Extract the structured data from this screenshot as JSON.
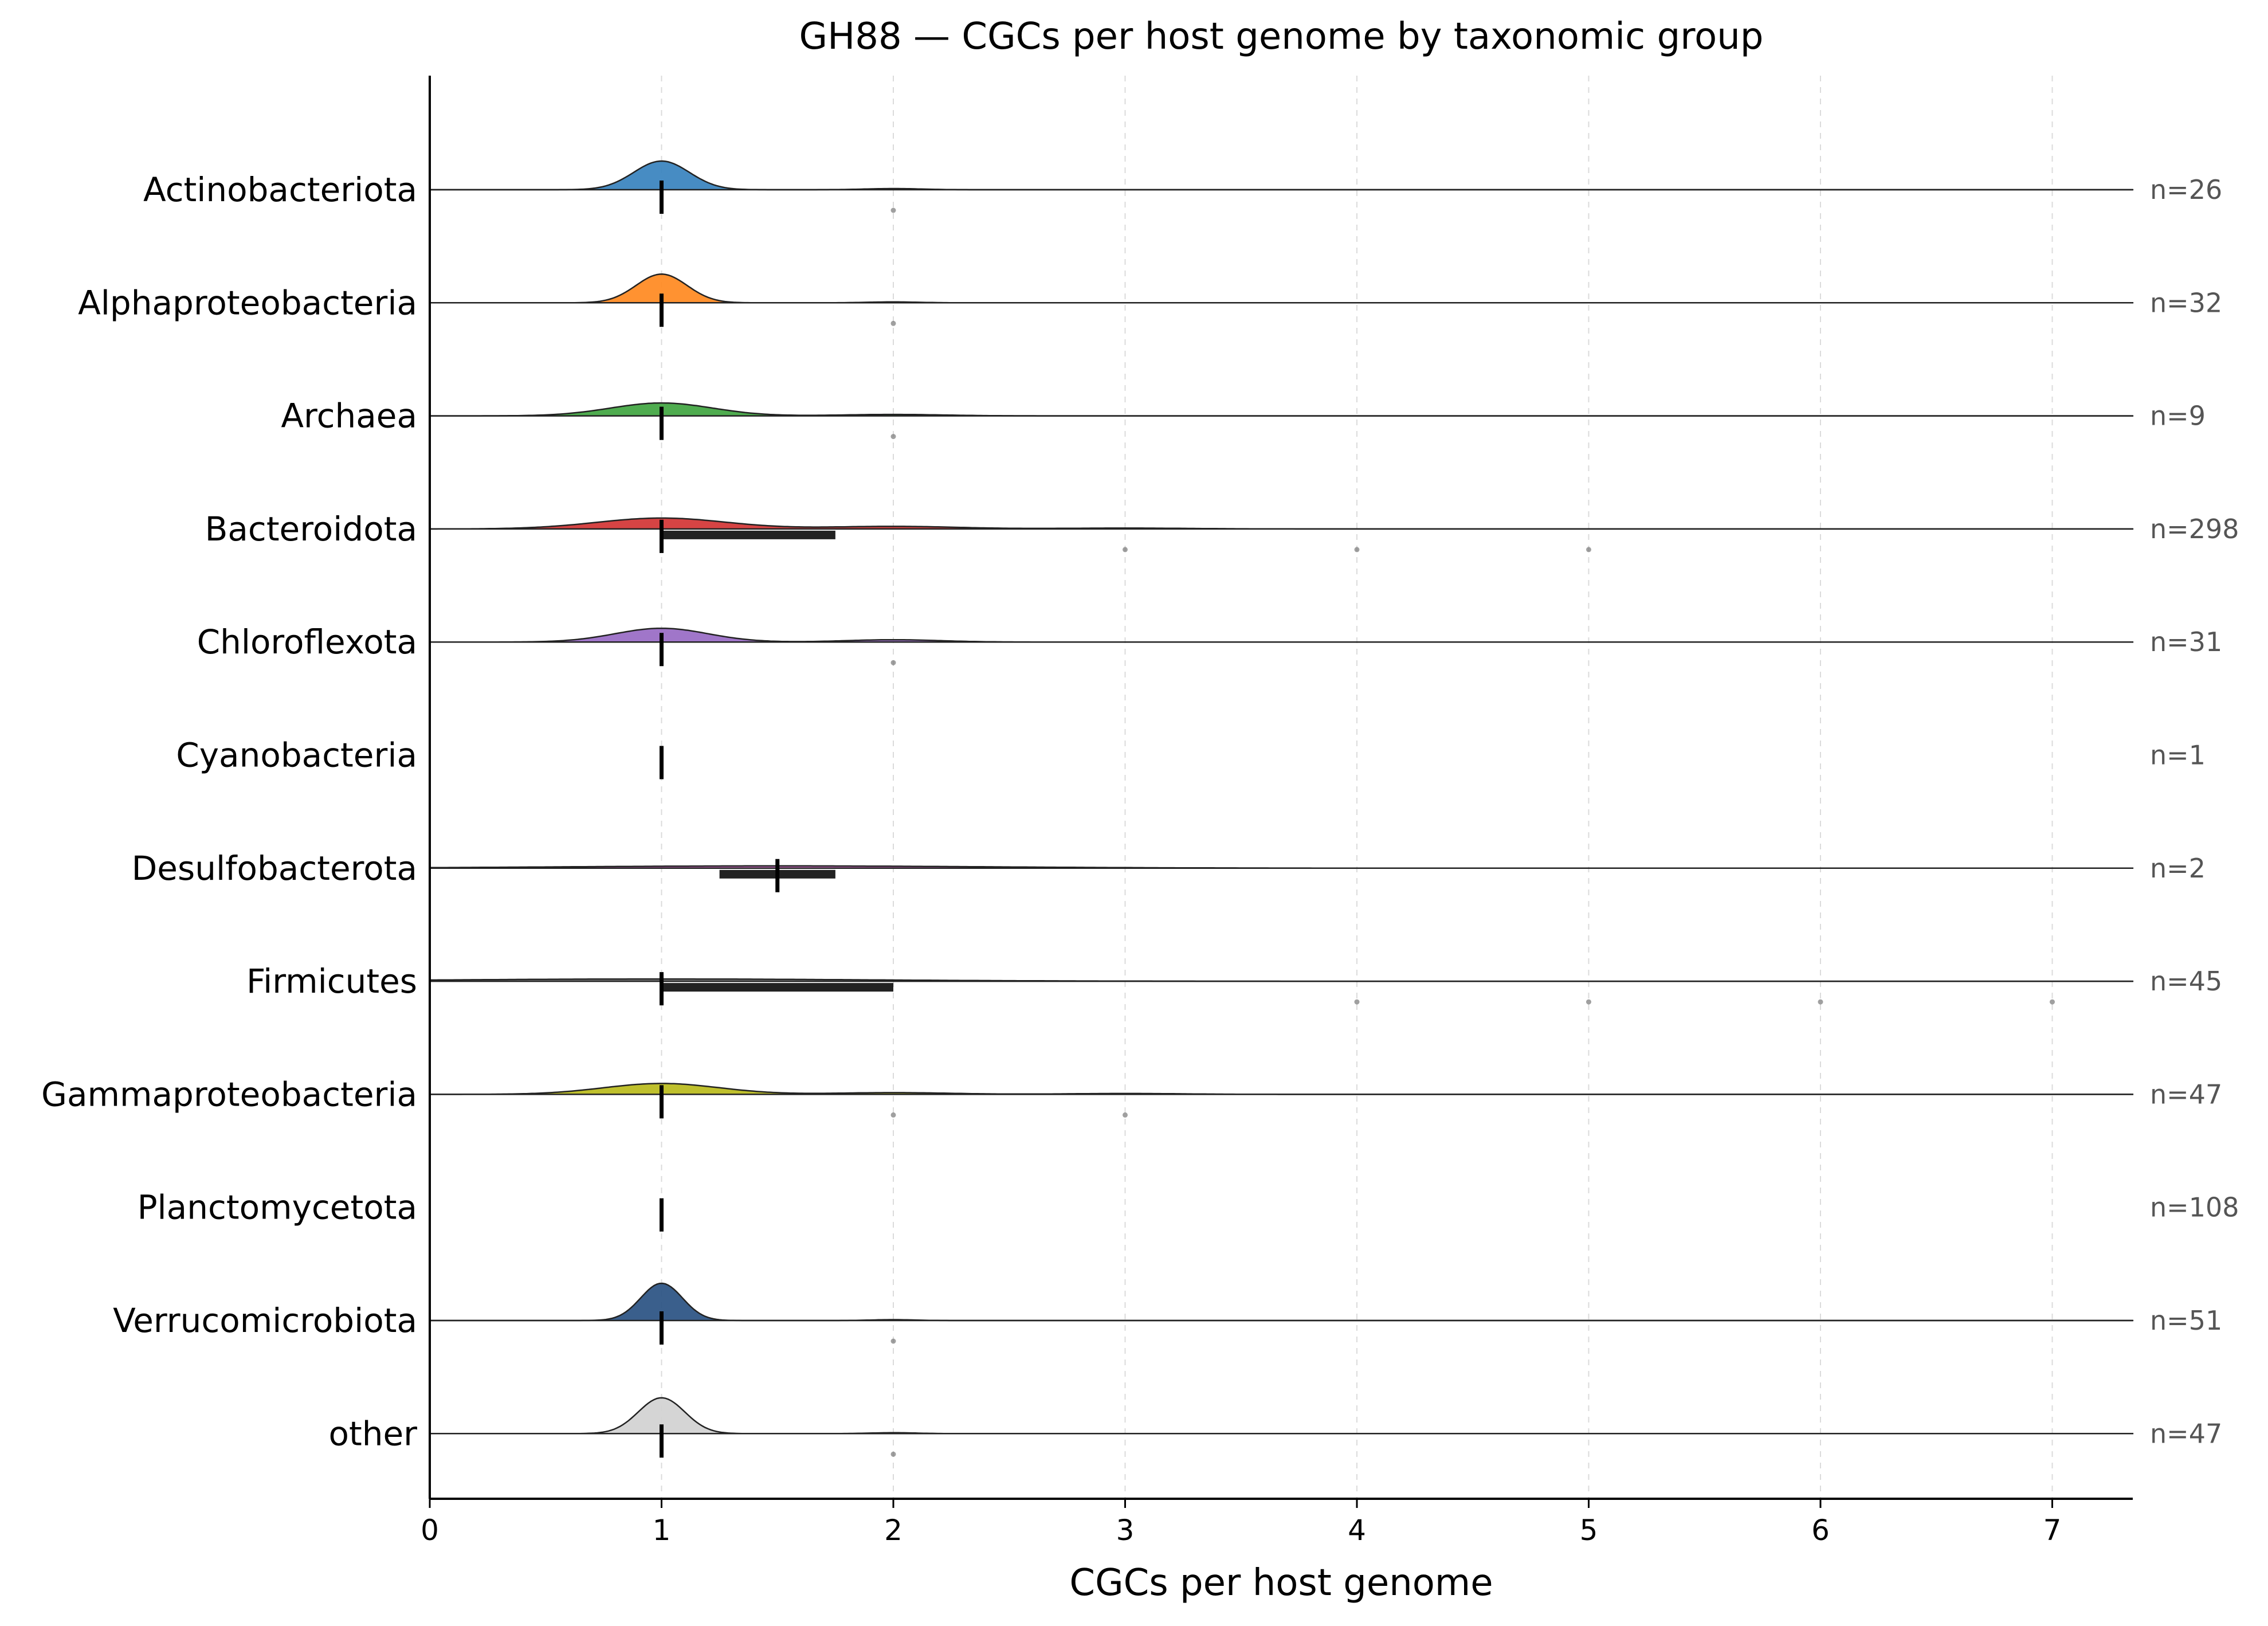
{
  "chart_data": {
    "type": "ridgeline",
    "title": "GH88 — CGCs per host genome by taxonomic group",
    "xlabel": "CGCs per host genome",
    "ylabel": "",
    "xlim": [
      0,
      7.35
    ],
    "xticks": [
      "0",
      "1",
      "2",
      "3",
      "4",
      "5",
      "6",
      "7"
    ],
    "grid": "vertical dashed",
    "series": [
      {
        "name": "Actinobacteriota",
        "color": "#3d86c0",
        "n_label": "n=26",
        "n": 26,
        "median": 1,
        "q1": 1,
        "q3": 1,
        "density": [
          {
            "mu": 1,
            "sigma": 0.12,
            "h": 1.0
          },
          {
            "mu": 2,
            "sigma": 0.12,
            "h": 0.04
          }
        ],
        "outliers": [
          2
        ]
      },
      {
        "name": "Alphaproteobacteria",
        "color": "#ff8c26",
        "n_label": "n=32",
        "n": 32,
        "median": 1,
        "q1": 1,
        "q3": 1,
        "density": [
          {
            "mu": 1,
            "sigma": 0.11,
            "h": 1.0
          },
          {
            "mu": 2,
            "sigma": 0.11,
            "h": 0.03
          }
        ],
        "outliers": [
          2
        ]
      },
      {
        "name": "Archaea",
        "color": "#46a846",
        "n_label": "n=9",
        "n": 9,
        "median": 1,
        "q1": 1,
        "q3": 1,
        "density": [
          {
            "mu": 1,
            "sigma": 0.22,
            "h": 0.45
          },
          {
            "mu": 2,
            "sigma": 0.22,
            "h": 0.05
          }
        ],
        "outliers": [
          2
        ]
      },
      {
        "name": "Bacteroidota",
        "color": "#d43a3a",
        "n_label": "n=298",
        "n": 298,
        "median": 1,
        "q1": 1,
        "q3": 1.75,
        "density": [
          {
            "mu": 1,
            "sigma": 0.28,
            "h": 0.38
          },
          {
            "mu": 2,
            "sigma": 0.28,
            "h": 0.09
          },
          {
            "mu": 3,
            "sigma": 0.28,
            "h": 0.03
          }
        ],
        "outliers": [
          3,
          4,
          5
        ]
      },
      {
        "name": "Chloroflexota",
        "color": "#9b6fc6",
        "n_label": "n=31",
        "n": 31,
        "median": 1,
        "q1": 1,
        "q3": 1,
        "density": [
          {
            "mu": 1,
            "sigma": 0.2,
            "h": 0.48
          },
          {
            "mu": 2,
            "sigma": 0.2,
            "h": 0.08
          }
        ],
        "outliers": [
          2
        ]
      },
      {
        "name": "Cyanobacteria",
        "color": "#8c564b",
        "n_label": "n=1",
        "n": 1,
        "median": 1,
        "q1": 1,
        "q3": 1,
        "density": [],
        "outliers": []
      },
      {
        "name": "Desulfobacterota",
        "color": "#c463b8",
        "n_label": "n=2",
        "n": 2,
        "median": 1.5,
        "q1": 1.25,
        "q3": 1.75,
        "density": [
          {
            "mu": 1.5,
            "sigma": 0.9,
            "h": 0.08
          }
        ],
        "outliers": []
      },
      {
        "name": "Firmicutes",
        "color": "#7f7f7f",
        "n_label": "n=45",
        "n": 45,
        "median": 1,
        "q1": 1,
        "q3": 2,
        "density": [
          {
            "mu": 1,
            "sigma": 0.9,
            "h": 0.08
          }
        ],
        "outliers": [
          4,
          5,
          6,
          7
        ]
      },
      {
        "name": "Gammaproteobacteria",
        "color": "#bcbd22",
        "n_label": "n=47",
        "n": 47,
        "median": 1,
        "q1": 1,
        "q3": 1,
        "density": [
          {
            "mu": 1,
            "sigma": 0.25,
            "h": 0.38
          },
          {
            "mu": 2,
            "sigma": 0.25,
            "h": 0.06
          },
          {
            "mu": 3,
            "sigma": 0.25,
            "h": 0.03
          }
        ],
        "outliers": [
          2,
          3
        ]
      },
      {
        "name": "Planctomycetota",
        "color": "#17becf",
        "n_label": "n=108",
        "n": 108,
        "median": 1,
        "q1": 1,
        "q3": 1,
        "density": [],
        "outliers": []
      },
      {
        "name": "Verrucomicrobiota",
        "color": "#2f5686",
        "n_label": "n=51",
        "n": 51,
        "median": 1,
        "q1": 1,
        "q3": 1,
        "density": [
          {
            "mu": 1,
            "sigma": 0.09,
            "h": 1.3
          },
          {
            "mu": 2,
            "sigma": 0.09,
            "h": 0.03
          }
        ],
        "outliers": [
          2
        ]
      },
      {
        "name": "other",
        "color": "#d3d3d3",
        "n_label": "n=47",
        "n": 47,
        "median": 1,
        "q1": 1,
        "q3": 1,
        "density": [
          {
            "mu": 1,
            "sigma": 0.1,
            "h": 1.25
          },
          {
            "mu": 2,
            "sigma": 0.1,
            "h": 0.03
          }
        ],
        "outliers": [
          2
        ]
      }
    ]
  }
}
